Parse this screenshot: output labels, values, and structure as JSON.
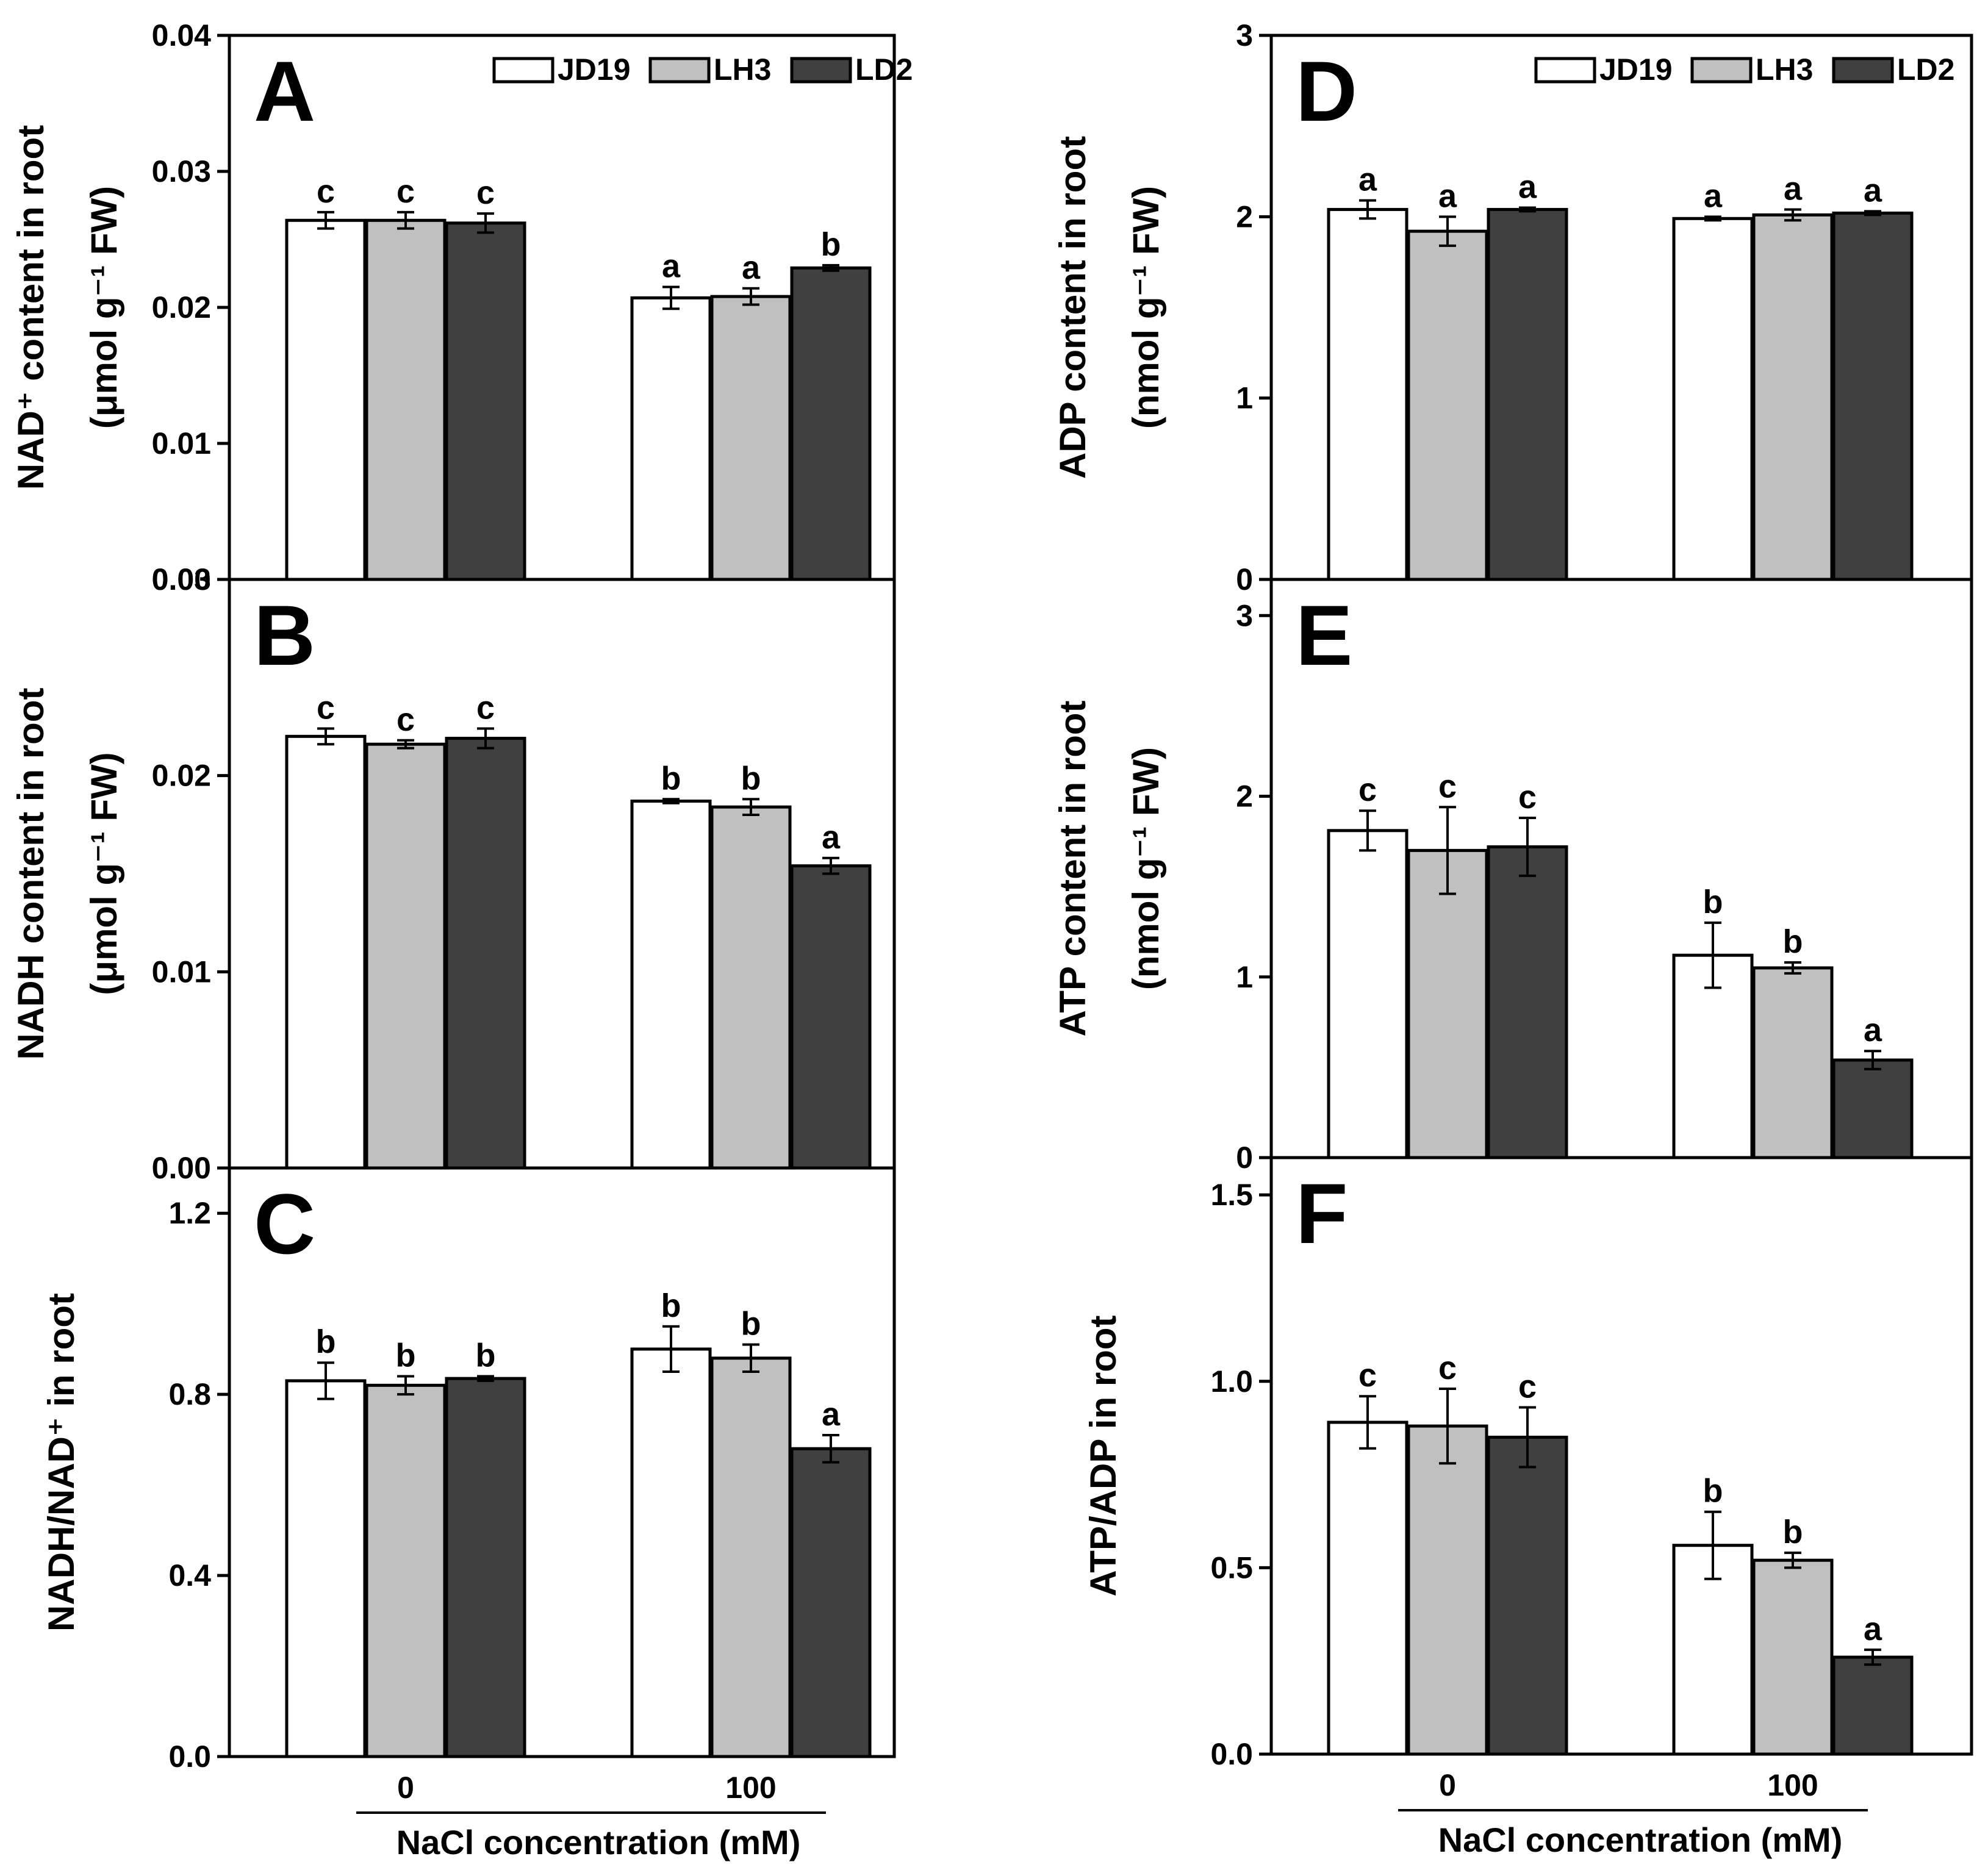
{
  "figure": {
    "xlabel": "NaCl concentration (mM)",
    "categories": [
      "0",
      "100"
    ]
  },
  "legend": [
    {
      "name": "JD19",
      "color": "#ffffff"
    },
    {
      "name": "LH3",
      "color": "#c0c0c0"
    },
    {
      "name": "LD2",
      "color": "#404040"
    }
  ],
  "chart_data": [
    {
      "panel": "A",
      "type": "bar",
      "ylabel_line1": "NAD⁺ content in root",
      "ylabel_line2": "(μmol g⁻¹ FW)",
      "ylim": [
        0,
        0.04
      ],
      "yticks": [
        "0.00",
        "0.01",
        "0.02",
        "0.03",
        "0.04"
      ],
      "categories": [
        "0",
        "100"
      ],
      "legend_shown": true,
      "series": [
        {
          "name": "JD19",
          "values": [
            0.0264,
            0.0207
          ],
          "errors": [
            0.0006,
            0.0008
          ],
          "letters": [
            "c",
            "a"
          ]
        },
        {
          "name": "LH3",
          "values": [
            0.0264,
            0.0208
          ],
          "errors": [
            0.0006,
            0.0006
          ],
          "letters": [
            "c",
            "a"
          ]
        },
        {
          "name": "LD2",
          "values": [
            0.0262,
            0.0229
          ],
          "errors": [
            0.0007,
            0.0002
          ],
          "letters": [
            "c",
            "b"
          ]
        }
      ]
    },
    {
      "panel": "B",
      "type": "bar",
      "ylabel_line1": "NADH content in root",
      "ylabel_line2": "(μmol g⁻¹ FW)",
      "ylim": [
        0,
        0.03
      ],
      "yticks": [
        "0.00",
        "0.01",
        "0.02",
        "0.03"
      ],
      "categories": [
        "0",
        "100"
      ],
      "legend_shown": false,
      "series": [
        {
          "name": "JD19",
          "values": [
            0.022,
            0.0187
          ],
          "errors": [
            0.0004,
            0.0001
          ],
          "letters": [
            "c",
            "b"
          ]
        },
        {
          "name": "LH3",
          "values": [
            0.0216,
            0.0184
          ],
          "errors": [
            0.0002,
            0.0004
          ],
          "letters": [
            "c",
            "b"
          ]
        },
        {
          "name": "LD2",
          "values": [
            0.0219,
            0.0154
          ],
          "errors": [
            0.0005,
            0.0004
          ],
          "letters": [
            "c",
            "a"
          ]
        }
      ]
    },
    {
      "panel": "C",
      "type": "bar",
      "ylabel_line1": "NADH/NAD⁺ in root",
      "ylabel_line2": "",
      "ylim": [
        0,
        1.3
      ],
      "yticks": [
        "0.0",
        "0.4",
        "0.8",
        "1.2"
      ],
      "categories": [
        "0",
        "100"
      ],
      "legend_shown": false,
      "series": [
        {
          "name": "JD19",
          "values": [
            0.83,
            0.9
          ],
          "errors": [
            0.04,
            0.05
          ],
          "letters": [
            "b",
            "b"
          ]
        },
        {
          "name": "LH3",
          "values": [
            0.82,
            0.88
          ],
          "errors": [
            0.02,
            0.03
          ],
          "letters": [
            "b",
            "b"
          ]
        },
        {
          "name": "LD2",
          "values": [
            0.835,
            0.68
          ],
          "errors": [
            0.005,
            0.03
          ],
          "letters": [
            "b",
            "a"
          ]
        }
      ]
    },
    {
      "panel": "D",
      "type": "bar",
      "ylabel_line1": "ADP content in root",
      "ylabel_line2": "(nmol g⁻¹ FW)",
      "ylim": [
        0,
        3
      ],
      "yticks": [
        "0",
        "1",
        "2",
        "3"
      ],
      "categories": [
        "0",
        "100"
      ],
      "legend_shown": true,
      "series": [
        {
          "name": "JD19",
          "values": [
            2.04,
            1.99
          ],
          "errors": [
            0.05,
            0.01
          ],
          "letters": [
            "a",
            "a"
          ]
        },
        {
          "name": "LH3",
          "values": [
            1.92,
            2.01
          ],
          "errors": [
            0.08,
            0.03
          ],
          "letters": [
            "a",
            "a"
          ]
        },
        {
          "name": "LD2",
          "values": [
            2.04,
            2.02
          ],
          "errors": [
            0.01,
            0.01
          ],
          "letters": [
            "a",
            "a"
          ]
        }
      ]
    },
    {
      "panel": "E",
      "type": "bar",
      "ylabel_line1": "ATP content in root",
      "ylabel_line2": "(nmol g⁻¹ FW)",
      "ylim": [
        0,
        3.2
      ],
      "yticks": [
        "0",
        "1",
        "2",
        "3"
      ],
      "categories": [
        "0",
        "100"
      ],
      "legend_shown": false,
      "series": [
        {
          "name": "JD19",
          "values": [
            1.81,
            1.12
          ],
          "errors": [
            0.11,
            0.18
          ],
          "letters": [
            "c",
            "b"
          ]
        },
        {
          "name": "LH3",
          "values": [
            1.7,
            1.05
          ],
          "errors": [
            0.24,
            0.03
          ],
          "letters": [
            "c",
            "b"
          ]
        },
        {
          "name": "LD2",
          "values": [
            1.72,
            0.54
          ],
          "errors": [
            0.16,
            0.05
          ],
          "letters": [
            "c",
            "a"
          ]
        }
      ]
    },
    {
      "panel": "F",
      "type": "bar",
      "ylabel_line1": "ATP/ADP in root",
      "ylabel_line2": "",
      "ylim": [
        0,
        1.6
      ],
      "yticks": [
        "0.0",
        "0.5",
        "1.0",
        "1.5"
      ],
      "categories": [
        "0",
        "100"
      ],
      "legend_shown": false,
      "series": [
        {
          "name": "JD19",
          "values": [
            0.89,
            0.56
          ],
          "errors": [
            0.07,
            0.09
          ],
          "letters": [
            "c",
            "b"
          ]
        },
        {
          "name": "LH3",
          "values": [
            0.88,
            0.52
          ],
          "errors": [
            0.1,
            0.02
          ],
          "letters": [
            "c",
            "b"
          ]
        },
        {
          "name": "LD2",
          "values": [
            0.85,
            0.26
          ],
          "errors": [
            0.08,
            0.02
          ],
          "letters": [
            "c",
            "a"
          ]
        }
      ]
    }
  ]
}
